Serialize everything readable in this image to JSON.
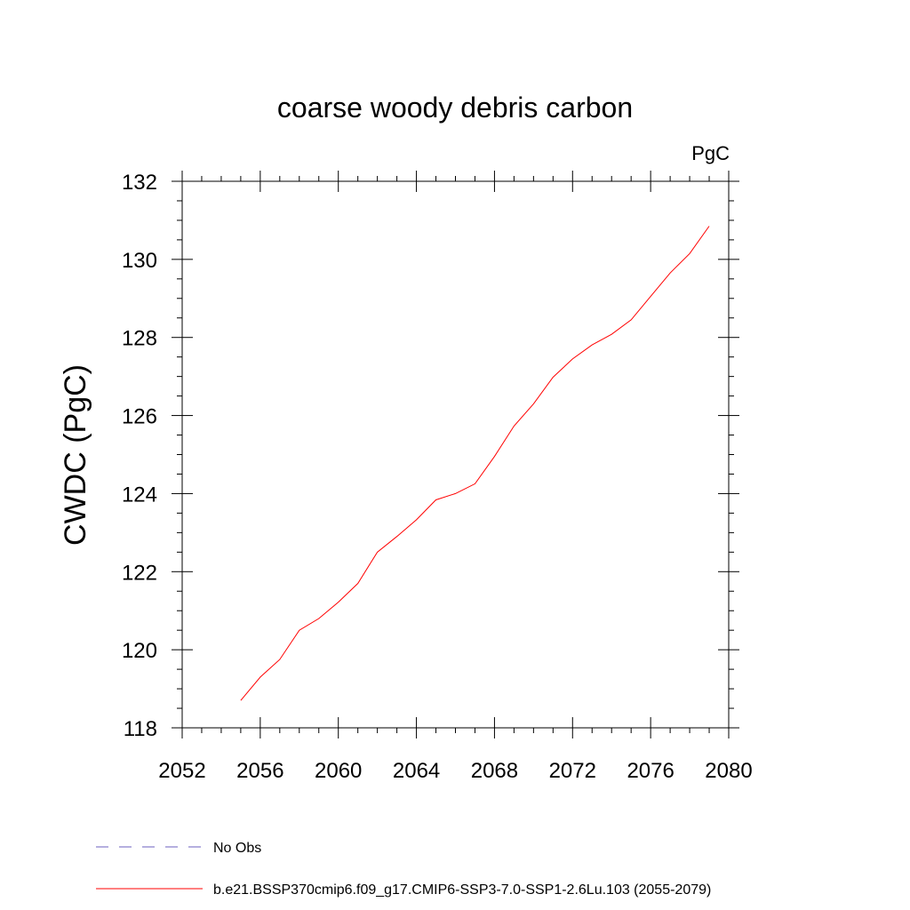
{
  "chart_data": {
    "type": "line",
    "title": "coarse woody debris carbon",
    "units": "PgC",
    "ylabel": "CWDC  (PgC)",
    "xlabel": "",
    "xlim": [
      2052,
      2080
    ],
    "ylim": [
      118,
      132
    ],
    "x_ticks": [
      2052,
      2056,
      2060,
      2064,
      2068,
      2072,
      2076,
      2080
    ],
    "y_ticks": [
      118,
      120,
      122,
      124,
      126,
      128,
      130,
      132
    ],
    "x_tick_labels": [
      "2052",
      "2056",
      "2060",
      "2064",
      "2068",
      "2072",
      "2076",
      "2080"
    ],
    "y_tick_labels": [
      "118",
      "120",
      "122",
      "124",
      "126",
      "128",
      "130",
      "132"
    ],
    "grid": false,
    "legend_placement": "bottom",
    "series": [
      {
        "name": "b.e21.BSSP370cmip6.f09_g17.CMIP6-SSP3-7.0-SSP1-2.6Lu.103 (2055-2079)",
        "color": "#ff0000",
        "style": "solid",
        "x": [
          2055,
          2056,
          2057,
          2058,
          2059,
          2060,
          2061,
          2062,
          2063,
          2064,
          2065,
          2066,
          2067,
          2068,
          2069,
          2070,
          2071,
          2072,
          2073,
          2074,
          2075,
          2076,
          2077,
          2078,
          2079
        ],
        "y": [
          118.7,
          119.3,
          119.75,
          120.5,
          120.8,
          121.22,
          121.7,
          122.5,
          122.9,
          123.33,
          123.84,
          124.0,
          124.25,
          124.95,
          125.73,
          126.3,
          126.98,
          127.45,
          127.81,
          128.08,
          128.45,
          129.05,
          129.65,
          130.15,
          130.85
        ]
      },
      {
        "name": "No Obs",
        "color": "#6b5fbf",
        "style": "dashed",
        "x": [],
        "y": []
      }
    ]
  }
}
